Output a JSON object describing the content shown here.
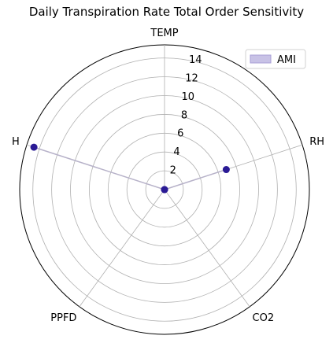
{
  "chart_data": {
    "type": "radar",
    "title": "Daily Transpiration Rate Total Order Sensitivity",
    "categories": [
      "TEMP",
      "RH",
      "CO2",
      "PPFD",
      "H"
    ],
    "series": [
      {
        "name": "AMI",
        "values": [
          0.0,
          6.9,
          0.0,
          0.0,
          14.6
        ]
      }
    ],
    "rlim": [
      0,
      15.4
    ],
    "rticks": [
      2,
      4,
      6,
      8,
      10,
      12,
      14
    ],
    "rtick_labels": [
      "2",
      "4",
      "6",
      "8",
      "10",
      "12",
      "14"
    ],
    "grid": true,
    "legend_position": "top-right",
    "colors": {
      "fill": "#c8c2e6",
      "line": "#b7b2c9",
      "marker": "#2a1a95",
      "grid": "#b0b0b0"
    }
  }
}
